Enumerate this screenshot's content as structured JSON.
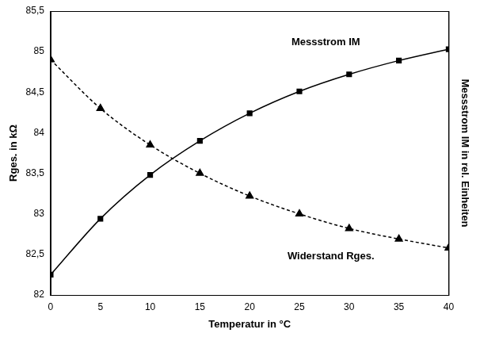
{
  "chart_data": {
    "type": "line",
    "x_label": "Temperatur in °C",
    "y_label": "Rges. in kΩ",
    "y2_label": "Messstrom IM in rel. Einheiten",
    "x": [
      0,
      5,
      10,
      15,
      20,
      25,
      30,
      35,
      40
    ],
    "xlim": [
      0,
      40
    ],
    "xticks": [
      0,
      5,
      10,
      15,
      20,
      25,
      30,
      35,
      40
    ],
    "ylim": [
      82,
      85.5
    ],
    "yticks": [
      82,
      {
        "value": 82.5,
        "label": "82,5"
      },
      83,
      {
        "value": 83.5,
        "label": "83,5"
      },
      84,
      {
        "value": 84.5,
        "label": "84,5"
      },
      85,
      {
        "value": 85.5,
        "label": "85,5"
      }
    ],
    "y2lim": [
      82,
      85.5
    ],
    "grid": false,
    "series": [
      {
        "name": "Messstrom IM",
        "color": "#000000",
        "marker": "square",
        "line_style": "solid",
        "axis": "y2",
        "values": [
          82.25,
          82.94,
          83.48,
          83.9,
          84.24,
          84.51,
          84.72,
          84.89,
          85.03
        ]
      },
      {
        "name": "Widerstand Rges.",
        "color": "#000000",
        "marker": "triangle",
        "line_style": "dashed",
        "values": [
          84.9,
          84.3,
          83.85,
          83.5,
          83.22,
          83.0,
          82.82,
          82.69,
          82.58
        ]
      }
    ]
  }
}
